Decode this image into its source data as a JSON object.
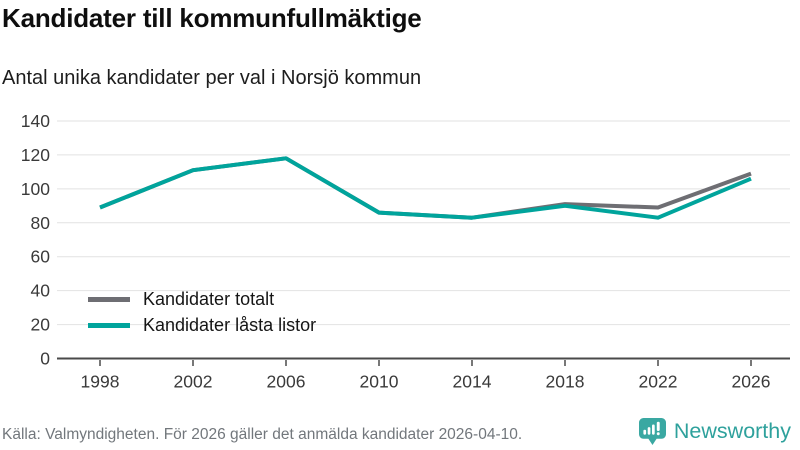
{
  "header": {
    "title": "Kandidater till kommunfullmäktige",
    "subtitle": "Antal unika kandidater per val i Norsjö kommun"
  },
  "chart_data": {
    "type": "line",
    "title": "Kandidater till kommunfullmäktige",
    "subtitle": "Antal unika kandidater per val i Norsjö kommun",
    "categories": [
      "1998",
      "2002",
      "2006",
      "2010",
      "2014",
      "2018",
      "2022",
      "2026"
    ],
    "series": [
      {
        "name": "Kandidater totalt",
        "color": "#6e6e73",
        "values": [
          89,
          111,
          118,
          86,
          83,
          91,
          89,
          109
        ]
      },
      {
        "name": "Kandidater låsta listor",
        "color": "#00a49c",
        "values": [
          89,
          111,
          118,
          86,
          83,
          90,
          83,
          106
        ]
      }
    ],
    "xlabel": "",
    "ylabel": "",
    "ylim": [
      0,
      140
    ],
    "yticks": [
      0,
      20,
      40,
      60,
      80,
      100,
      120,
      140
    ],
    "grid": true,
    "legend_position": "inside-bottom-left"
  },
  "footer": {
    "source": "Källa: Valmyndigheten. För 2026 gäller det anmälda kandidater 2026-04-10.",
    "brand": "Newsworthy"
  },
  "colors": {
    "series_total_gray": "#6e6e73",
    "series_locked_teal": "#00a49c",
    "brand_teal": "#3aa8a2",
    "grid_gray": "#e2e2e2",
    "axis_dark": "#4a4a4a",
    "tick_text": "#3a3a3a",
    "muted_text": "#72777c"
  },
  "icons": {
    "brand_logo": "newsworthy-speech-bubble-bar-chart-icon"
  }
}
